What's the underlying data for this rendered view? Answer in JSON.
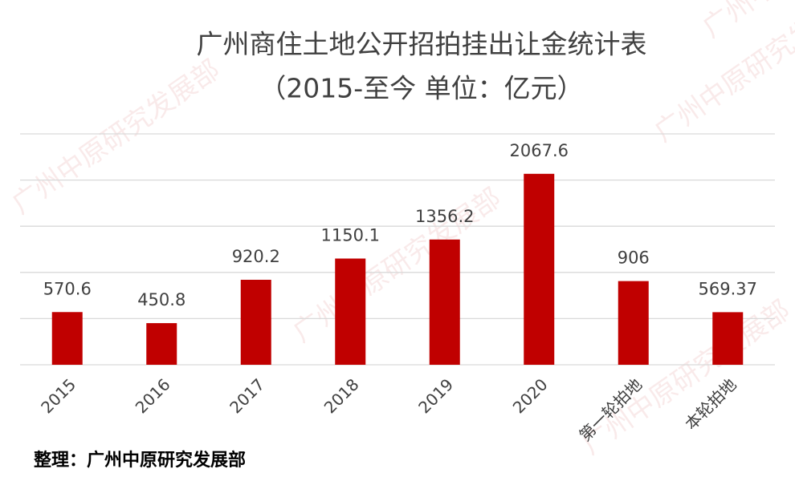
{
  "chart_data": {
    "type": "bar",
    "title": "广州商住土地公开招拍挂出让金统计表",
    "subtitle": "（2015-至今  单位：亿元）",
    "categories": [
      "2015",
      "2016",
      "2017",
      "2018",
      "2019",
      "2020",
      "第一轮拍地",
      "本轮拍地"
    ],
    "values": [
      570.6,
      450.8,
      920.2,
      1150.1,
      1356.2,
      2067.6,
      906,
      569.37
    ],
    "color": "#c00000",
    "ylim": [
      0,
      2500
    ],
    "yticks": [
      0,
      500,
      1000,
      1500,
      2000,
      2500
    ],
    "grid": true,
    "source": "整理：广州中原研究发展部",
    "watermark": "广州中原研究发展部"
  }
}
